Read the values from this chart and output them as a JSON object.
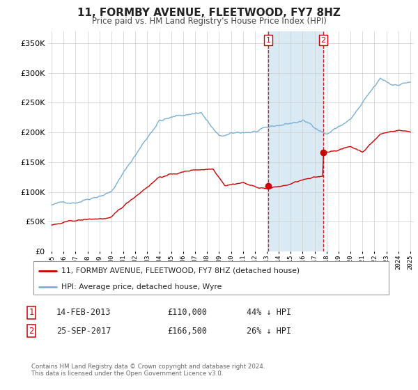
{
  "title": "11, FORMBY AVENUE, FLEETWOOD, FY7 8HZ",
  "subtitle": "Price paid vs. HM Land Registry's House Price Index (HPI)",
  "legend_label_red": "11, FORMBY AVENUE, FLEETWOOD, FY7 8HZ (detached house)",
  "legend_label_blue": "HPI: Average price, detached house, Wyre",
  "transaction1_date": "14-FEB-2013",
  "transaction1_price": 110000,
  "transaction1_label": "44% ↓ HPI",
  "transaction2_date": "25-SEP-2017",
  "transaction2_price": 166500,
  "transaction2_label": "26% ↓ HPI",
  "footer": "Contains HM Land Registry data © Crown copyright and database right 2024.\nThis data is licensed under the Open Government Licence v3.0.",
  "xlim_left": 1994.7,
  "xlim_right": 2025.3,
  "ylim_bottom": 0,
  "ylim_top": 370000,
  "transaction1_year": 2013.12,
  "transaction2_year": 2017.73,
  "red_color": "#cc0000",
  "blue_color": "#7ab0d4",
  "shade_color": "#daeaf5",
  "grid_color": "#cccccc",
  "background_color": "#ffffff"
}
